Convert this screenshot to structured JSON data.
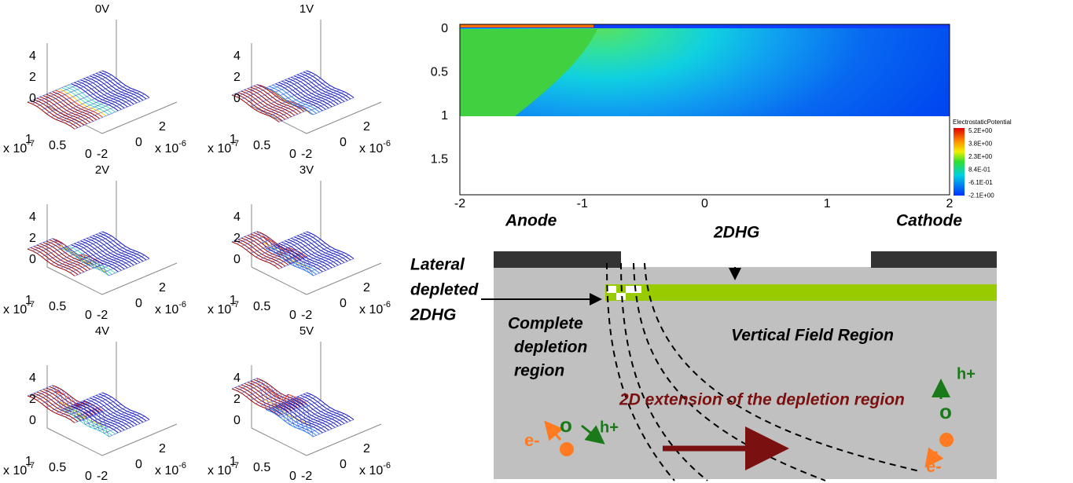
{
  "surface_plots": {
    "panels": [
      {
        "title": "0V"
      },
      {
        "title": "1V"
      },
      {
        "title": "2V"
      },
      {
        "title": "3V"
      },
      {
        "title": "4V"
      },
      {
        "title": "5V"
      }
    ],
    "z_ticks": [
      "4",
      "2",
      "0"
    ],
    "y_ticks": [
      "1",
      "0.5",
      "0"
    ],
    "x_ticks": [
      "-2",
      "0",
      "2"
    ],
    "y_multiplier": {
      "base": "x 10",
      "exponent": "-7"
    },
    "x_multiplier": {
      "base": "x 10",
      "exponent": "-6"
    }
  },
  "contour": {
    "y_ticks": [
      "0",
      "0.5",
      "1",
      "1.5"
    ],
    "x_ticks": [
      "-2",
      "-1",
      "0",
      "1",
      "2"
    ],
    "colorbar": {
      "title": "ElectrostaticPotential",
      "labels": [
        "5.2E+00",
        "3.8E+00",
        "2.3E+00",
        "8.4E-01",
        "-6.1E-01",
        "-2.1E+00"
      ]
    }
  },
  "diagram": {
    "anode": "Anode",
    "cathode": "Cathode",
    "channel": "2DHG",
    "lateral": [
      "Lateral",
      "depleted",
      "2DHG"
    ],
    "complete": [
      "Complete",
      "depletion",
      "region"
    ],
    "vertical_field": "Vertical Field Region",
    "extension": "2D extension of the depletion region",
    "left_carriers": {
      "hole_symbol": "o",
      "hole": "h+",
      "electron": "e-"
    },
    "right_carriers": {
      "hole_symbol": "o",
      "hole": "h+",
      "electron": "e-"
    }
  }
}
